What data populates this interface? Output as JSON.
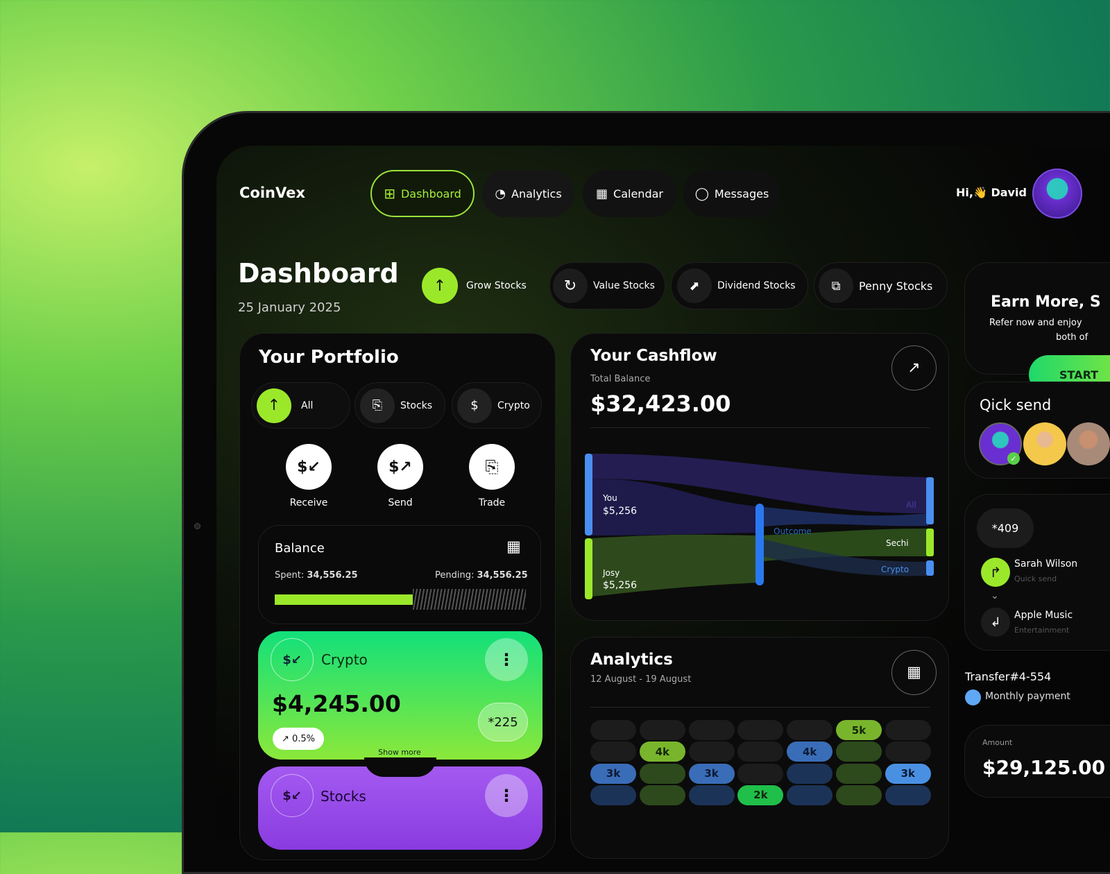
{
  "app": {
    "logo": "CoinVex"
  },
  "nav": [
    {
      "label": "Dashboard",
      "icon": "grid-icon",
      "active": true
    },
    {
      "label": "Analytics",
      "icon": "pie-chart-icon"
    },
    {
      "label": "Calendar",
      "icon": "calendar-icon"
    },
    {
      "label": "Messages",
      "icon": "chat-icon"
    }
  ],
  "user": {
    "greeting": "Hi,",
    "wave": "👋",
    "name": "David"
  },
  "page": {
    "title": "Dashboard",
    "date": "25 January 2025"
  },
  "filters": [
    {
      "label": "Grow Stocks",
      "icon": "arrow-up-icon",
      "active": true
    },
    {
      "label": "Value Stocks",
      "icon": "refresh-icon"
    },
    {
      "label": "Dividend Stocks",
      "icon": "trend-icon"
    },
    {
      "label": "Penny Stocks",
      "icon": "chart-badge-icon"
    }
  ],
  "portfolio": {
    "title": "Your Portfolio",
    "tabs": [
      {
        "label": "All",
        "active": true
      },
      {
        "label": "Stocks"
      },
      {
        "label": "Crypto"
      }
    ],
    "actions": [
      {
        "label": "Receive"
      },
      {
        "label": "Send"
      },
      {
        "label": "Trade"
      }
    ],
    "balance": {
      "title": "Balance",
      "spent_label": "Spent:",
      "spent": "34,556.25",
      "pending_label": "Pending:",
      "pending": "34,556.25",
      "progress": 0.5
    },
    "crypto": {
      "name": "Crypto",
      "amount": "$4,245.00",
      "change": "0.5%",
      "card": "*225",
      "show_more": "Show more"
    },
    "stocks": {
      "name": "Stocks"
    }
  },
  "cashflow": {
    "title": "Your Cashflow",
    "subtitle": "Total Balance",
    "amount": "$32,423.00",
    "nodes": {
      "you": "You",
      "you_value": "$5,256",
      "josy": "Josy",
      "josy_value": "$5,256",
      "outcome": "Outcome",
      "all": "All",
      "sechi": "Sechi",
      "crypto": "Crypto"
    }
  },
  "analytics": {
    "title": "Analytics",
    "range": "12 August - 19 August",
    "colors": {
      "empty": "#1c1c1c",
      "green": "#79b52c",
      "blue": "#3a6db8",
      "dimgreen": "#2d4a1c",
      "dimblue": "#1c3358",
      "brightgreen": "#1fbf4a",
      "brightblue": "#4a90e2"
    },
    "grid": [
      [
        "empty",
        "empty",
        "empty",
        "empty",
        "empty",
        {
          "t": "green",
          "l": "5k"
        },
        "empty"
      ],
      [
        "empty",
        {
          "t": "green",
          "l": "4k"
        },
        "empty",
        "empty",
        {
          "t": "blue",
          "l": "4k"
        },
        "dimgreen",
        "empty"
      ],
      [
        {
          "t": "blue",
          "l": "3k"
        },
        "dimgreen",
        {
          "t": "blue",
          "l": "3k"
        },
        "empty",
        "dimblue",
        "dimgreen",
        {
          "t": "brightblue",
          "l": "3k"
        }
      ],
      [
        "dimblue",
        "dimgreen",
        "dimblue",
        {
          "t": "brightgreen",
          "l": "2k"
        },
        "dimblue",
        "dimgreen",
        "dimblue"
      ]
    ]
  },
  "earn": {
    "title": "Earn More, S",
    "text1": "Refer now and enjoy",
    "text2": "both of",
    "button": "START"
  },
  "quick_send": {
    "title": "Qick send"
  },
  "transfer": {
    "card": "*409",
    "items": [
      {
        "name": "Sarah Wilson",
        "sub": "Quick send"
      },
      {
        "name": "Apple Music",
        "sub": "Entertainment"
      }
    ],
    "id": "Transfer#4-554",
    "type": "Monthly payment"
  },
  "amount": {
    "label": "Amount",
    "value": "$29,125.00"
  }
}
